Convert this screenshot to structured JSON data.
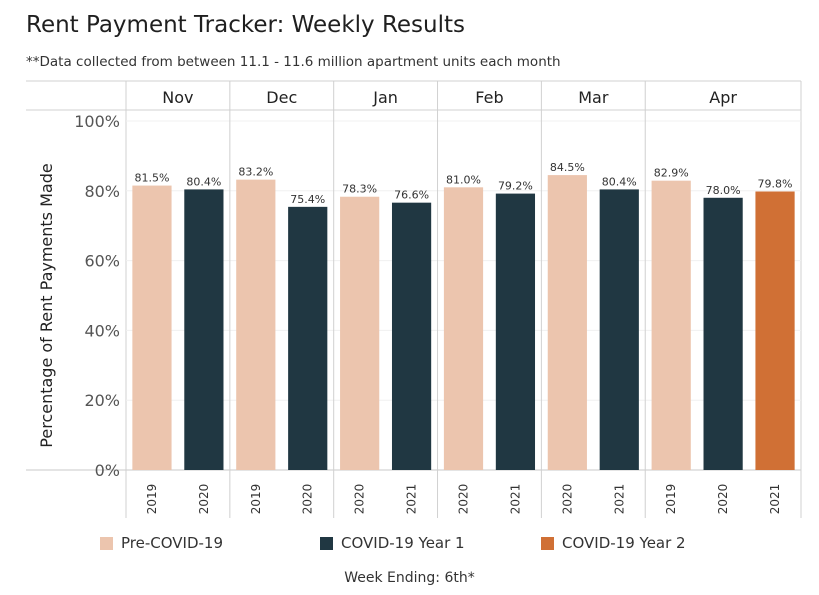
{
  "title": "Rent Payment Tracker: Weekly Results",
  "subtitle": "**Data collected from between 11.1 - 11.6 million apartment units each month",
  "footer": "Week Ending: 6th*",
  "legend": [
    {
      "label": "Pre-COVID-19",
      "color": "#ecc5ae"
    },
    {
      "label": "COVID-19 Year 1",
      "color": "#203742"
    },
    {
      "label": "COVID-19 Year 2",
      "color": "#d07035"
    }
  ],
  "chart_data": {
    "type": "bar",
    "ylabel": "Percentage of Rent Payments Made",
    "ylim": [
      0,
      100
    ],
    "yticks": [
      "0%",
      "20%",
      "40%",
      "60%",
      "80%",
      "100%"
    ],
    "ytick_values": [
      0,
      20,
      40,
      60,
      80,
      100
    ],
    "groups": [
      {
        "month": "Nov",
        "bars": [
          {
            "year": "2019",
            "value": 81.5,
            "label": "81.5%",
            "series": 0
          },
          {
            "year": "2020",
            "value": 80.4,
            "label": "80.4%",
            "series": 1
          }
        ]
      },
      {
        "month": "Dec",
        "bars": [
          {
            "year": "2019",
            "value": 83.2,
            "label": "83.2%",
            "series": 0
          },
          {
            "year": "2020",
            "value": 75.4,
            "label": "75.4%",
            "series": 1
          }
        ]
      },
      {
        "month": "Jan",
        "bars": [
          {
            "year": "2020",
            "value": 78.3,
            "label": "78.3%",
            "series": 0
          },
          {
            "year": "2021",
            "value": 76.6,
            "label": "76.6%",
            "series": 1
          }
        ]
      },
      {
        "month": "Feb",
        "bars": [
          {
            "year": "2020",
            "value": 81.0,
            "label": "81.0%",
            "series": 0
          },
          {
            "year": "2021",
            "value": 79.2,
            "label": "79.2%",
            "series": 1
          }
        ]
      },
      {
        "month": "Mar",
        "bars": [
          {
            "year": "2020",
            "value": 84.5,
            "label": "84.5%",
            "series": 0
          },
          {
            "year": "2021",
            "value": 80.4,
            "label": "80.4%",
            "series": 1
          }
        ]
      },
      {
        "month": "Apr",
        "bars": [
          {
            "year": "2019",
            "value": 82.9,
            "label": "82.9%",
            "series": 0
          },
          {
            "year": "2020",
            "value": 78.0,
            "label": "78.0%",
            "series": 1
          },
          {
            "year": "2021",
            "value": 79.8,
            "label": "79.8%",
            "series": 2
          }
        ]
      }
    ]
  }
}
